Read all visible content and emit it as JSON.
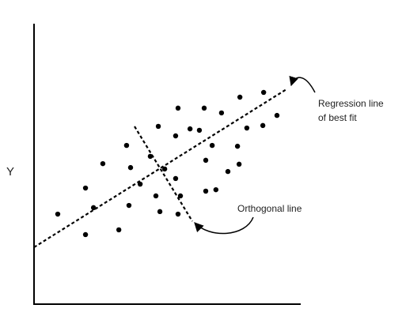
{
  "chart_data": {
    "type": "scatter",
    "ylabel": "Y",
    "annotations": [
      "Regression line",
      "of best fit",
      "Orthogonal line"
    ],
    "color": "#000000",
    "xlim": [
      0,
      100
    ],
    "ylim": [
      0,
      100
    ],
    "x": [
      8.9,
      19.3,
      31.8,
      19.3,
      22.3,
      25.8,
      34.7,
      36.2,
      35.6,
      39.8,
      43.6,
      46.6,
      45.7,
      47.2,
      49.0,
      53.1,
      54.0,
      53.1,
      54.9,
      54.0,
      58.5,
      62.0,
      63.8,
      64.4,
      64.4,
      68.2,
      66.8,
      70.3,
      72.7,
      76.3,
      77.2,
      76.9,
      79.8,
      86.1,
      85.8,
      91.1
    ],
    "values": [
      32.1,
      24.8,
      26.5,
      41.4,
      34.4,
      50.1,
      56.6,
      48.7,
      35.2,
      42.8,
      52.7,
      63.4,
      38.6,
      33.0,
      48.2,
      44.8,
      69.9,
      60.0,
      38.6,
      32.1,
      62.5,
      62.0,
      69.9,
      51.3,
      40.3,
      40.8,
      56.6,
      68.2,
      47.3,
      56.3,
      73.8,
      49.9,
      62.8,
      75.5,
      63.7,
      67.3
    ]
  }
}
